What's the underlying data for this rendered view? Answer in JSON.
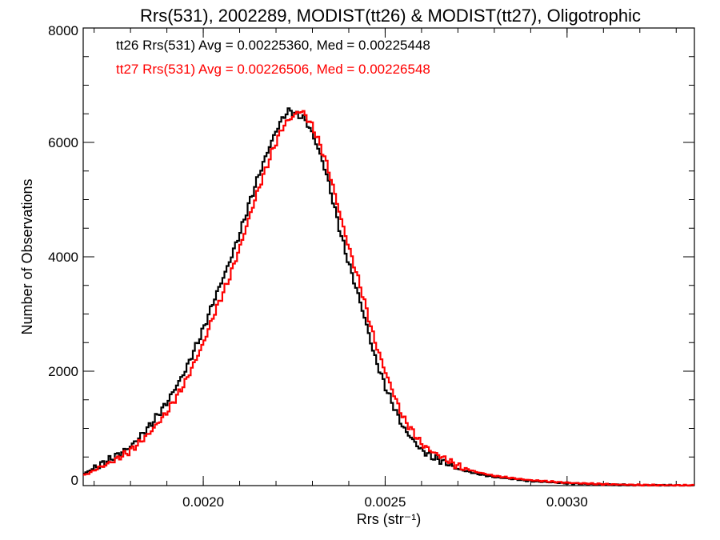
{
  "chart_data": {
    "type": "line",
    "title": "Rrs(531), 2002289, MODIST(tt26) & MODIST(tt27), Oligotrophic",
    "xlabel": "Rrs (str⁻¹)",
    "ylabel": "Number of Observations",
    "xlim": [
      0.00167,
      0.00335
    ],
    "ylim": [
      0,
      8000
    ],
    "x_ticks": [
      0.002,
      0.0025,
      0.003
    ],
    "x_tick_labels": [
      "0.0020",
      "0.0025",
      "0.0030"
    ],
    "y_ticks": [
      0,
      2000,
      4000,
      6000,
      8000
    ],
    "y_tick_labels": [
      "0",
      "2000",
      "4000",
      "6000",
      "8000"
    ],
    "grid": false,
    "step": true,
    "legend_placement": "top-left",
    "series": [
      {
        "name": "tt26",
        "legend": "tt26 Rrs(531) Avg = 0.00225360, Med = 0.00225448",
        "color": "#000000",
        "x": [
          0.00167,
          0.00175,
          0.0018,
          0.00185,
          0.0019,
          0.00195,
          0.002,
          0.00203,
          0.00207,
          0.0021,
          0.00213,
          0.00215,
          0.00217,
          0.00219,
          0.00221,
          0.00222,
          0.00223,
          0.00224,
          0.00225,
          0.00226,
          0.00227,
          0.00228,
          0.0023,
          0.00232,
          0.00234,
          0.00236,
          0.00238,
          0.0024,
          0.00243,
          0.00245,
          0.00247,
          0.0025,
          0.00253,
          0.00255,
          0.00258,
          0.0026,
          0.00263,
          0.00267,
          0.0027,
          0.00275,
          0.0028,
          0.00285,
          0.0029,
          0.003,
          0.0031,
          0.0032,
          0.00335
        ],
        "y": [
          200,
          480,
          680,
          1020,
          1450,
          2000,
          2730,
          3250,
          3870,
          4400,
          5000,
          5380,
          5720,
          6050,
          6330,
          6430,
          6530,
          6550,
          6500,
          6480,
          6450,
          6400,
          6150,
          5820,
          5420,
          4880,
          4350,
          3880,
          3250,
          2780,
          2280,
          1740,
          1290,
          1010,
          770,
          620,
          500,
          390,
          290,
          210,
          150,
          115,
          80,
          40,
          20,
          7,
          2
        ]
      },
      {
        "name": "tt27",
        "legend": "tt27 Rrs(531) Avg = 0.00226506, Med = 0.00226548",
        "color": "#ff0000",
        "x": [
          0.00167,
          0.00175,
          0.0018,
          0.00185,
          0.0019,
          0.00195,
          0.002,
          0.00203,
          0.00207,
          0.0021,
          0.00213,
          0.00215,
          0.00217,
          0.00219,
          0.00221,
          0.00222,
          0.00223,
          0.00224,
          0.00225,
          0.00226,
          0.00227,
          0.00228,
          0.0023,
          0.00232,
          0.00234,
          0.00236,
          0.00238,
          0.0024,
          0.00243,
          0.00245,
          0.00247,
          0.0025,
          0.00253,
          0.00255,
          0.00258,
          0.0026,
          0.00263,
          0.00267,
          0.0027,
          0.00275,
          0.0028,
          0.00285,
          0.0029,
          0.003,
          0.0031,
          0.0032,
          0.00335
        ],
        "y": [
          170,
          420,
          610,
          900,
          1280,
          1800,
          2480,
          3000,
          3600,
          4150,
          4760,
          5150,
          5500,
          5850,
          6150,
          6280,
          6360,
          6420,
          6470,
          6530,
          6550,
          6480,
          6280,
          5980,
          5620,
          5150,
          4640,
          4170,
          3530,
          3050,
          2560,
          2000,
          1500,
          1180,
          910,
          730,
          590,
          450,
          340,
          240,
          170,
          130,
          95,
          50,
          25,
          10,
          3
        ]
      }
    ]
  }
}
